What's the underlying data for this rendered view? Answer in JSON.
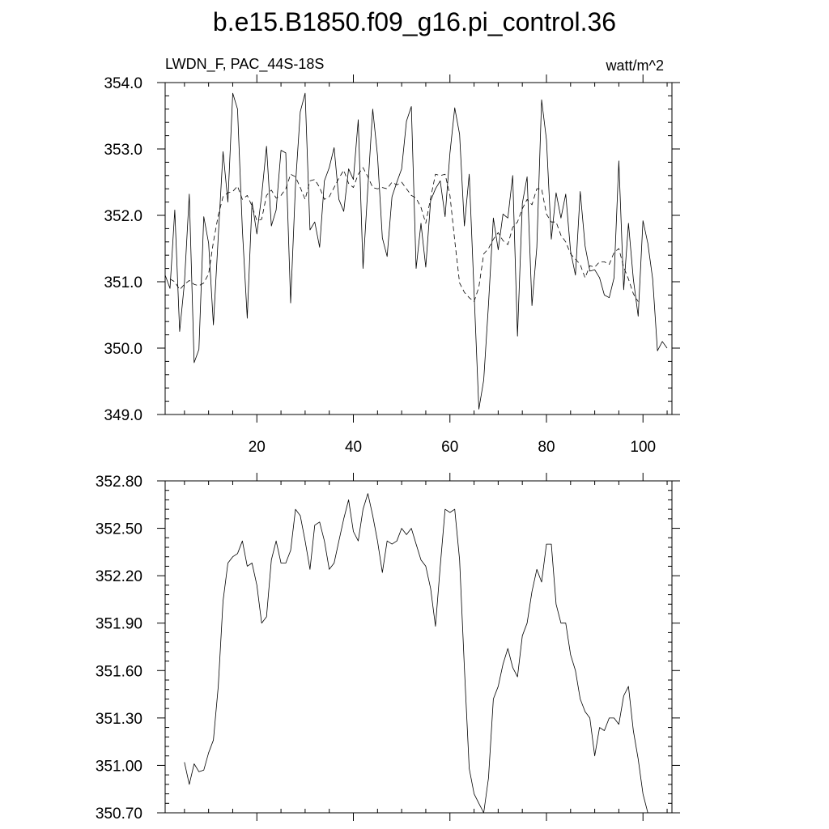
{
  "figure_title": "b.e15.B1850.f09_g16.pi_control.36",
  "chart_data": [
    {
      "type": "line",
      "title": "LWDN_F, PAC_44S-18S",
      "units_label": "watt/m^2",
      "xlim": [
        1,
        106
      ],
      "ylim": [
        349.0,
        354.0
      ],
      "x_ticks": [
        20,
        40,
        60,
        80,
        100
      ],
      "y_ticks": [
        349.0,
        350.0,
        351.0,
        352.0,
        353.0,
        354.0
      ],
      "y_tick_labels": [
        "349.0",
        "350.0",
        "351.0",
        "352.0",
        "353.0",
        "354.0"
      ],
      "grid": false,
      "series": [
        {
          "style": "solid",
          "x_start": 1,
          "values": [
            351.1,
            350.9,
            352.08,
            350.25,
            350.98,
            352.32,
            349.78,
            349.98,
            351.98,
            351.58,
            350.35,
            351.68,
            352.96,
            352.2,
            353.84,
            353.6,
            351.78,
            350.45,
            352.2,
            351.72,
            352.3,
            353.04,
            351.84,
            352.08,
            352.98,
            352.94,
            350.68,
            352.46,
            353.56,
            353.84,
            351.78,
            351.9,
            351.52,
            352.52,
            352.72,
            353.02,
            352.24,
            352.06,
            352.7,
            352.54,
            353.44,
            351.2,
            352.42,
            353.6,
            352.9,
            351.66,
            351.38,
            352.28,
            352.5,
            352.7,
            353.42,
            353.64,
            351.2,
            351.88,
            351.22,
            352.22,
            352.4,
            352.52,
            351.98,
            352.94,
            353.62,
            353.22,
            351.84,
            352.62,
            350.84,
            349.08,
            349.52,
            350.66,
            351.96,
            351.48,
            352.02,
            351.96,
            352.6,
            350.18,
            352.18,
            352.58,
            350.64,
            351.52,
            353.74,
            353.14,
            351.64,
            352.34,
            351.96,
            352.32,
            351.46,
            351.1,
            352.36,
            351.54,
            351.16,
            351.18,
            351.06,
            350.8,
            350.76,
            351.06,
            352.82,
            350.88,
            351.88,
            351.04,
            350.48,
            351.92,
            351.58,
            351.04,
            349.96,
            350.1,
            350.0
          ]
        },
        {
          "style": "dashed",
          "x_start": 2,
          "values": [
            351.04,
            351.0,
            350.88,
            350.96,
            351.02,
            350.96,
            350.94,
            350.98,
            351.12,
            351.6,
            352.0,
            352.28,
            352.34,
            352.36,
            352.44,
            352.24,
            352.3,
            352.14,
            351.92,
            351.94,
            352.3,
            352.38,
            352.26,
            352.3,
            352.4,
            352.62,
            352.58,
            352.42,
            352.24,
            352.52,
            352.54,
            352.42,
            352.24,
            352.28,
            352.42,
            352.56,
            352.68,
            352.48,
            352.42,
            352.62,
            352.72,
            352.58,
            352.42,
            352.4,
            352.42,
            352.4,
            352.5,
            352.46,
            352.5,
            352.4,
            352.3,
            352.26,
            352.12,
            351.88,
            352.26,
            352.62,
            352.6,
            352.62,
            352.3,
            351.62,
            350.98,
            350.84,
            350.76,
            350.7,
            350.92,
            351.42,
            351.5,
            351.64,
            351.74,
            351.62,
            351.56,
            351.82,
            351.9,
            352.1,
            352.24,
            352.16,
            352.4,
            352.4,
            352.02,
            351.9,
            351.9,
            351.7,
            351.6,
            351.42,
            351.34,
            351.26,
            351.06,
            351.24,
            351.22,
            351.3,
            351.3,
            351.26,
            351.44,
            351.5,
            351.22,
            351.04,
            350.82,
            350.7
          ]
        }
      ]
    },
    {
      "type": "line",
      "xlim": [
        1,
        106
      ],
      "ylim": [
        350.7,
        352.8
      ],
      "x_ticks": [
        20,
        40,
        60,
        80,
        100
      ],
      "y_ticks": [
        350.7,
        351.0,
        351.3,
        351.6,
        351.9,
        352.2,
        352.5,
        352.8
      ],
      "y_tick_labels": [
        "350.70",
        "351.00",
        "351.30",
        "351.60",
        "351.90",
        "352.20",
        "352.50",
        "352.80"
      ],
      "grid": false,
      "series": [
        {
          "style": "solid",
          "x_start": 5,
          "values": [
            351.02,
            350.88,
            351.01,
            350.96,
            350.97,
            351.08,
            351.16,
            351.5,
            352.04,
            352.28,
            352.32,
            352.34,
            352.42,
            352.26,
            352.28,
            352.14,
            351.9,
            351.94,
            352.3,
            352.42,
            352.28,
            352.28,
            352.36,
            352.62,
            352.58,
            352.42,
            352.24,
            352.52,
            352.54,
            352.42,
            352.24,
            352.28,
            352.42,
            352.56,
            352.68,
            352.48,
            352.42,
            352.62,
            352.72,
            352.58,
            352.42,
            352.22,
            352.42,
            352.4,
            352.42,
            352.5,
            352.46,
            352.5,
            352.4,
            352.3,
            352.26,
            352.12,
            351.88,
            352.26,
            352.62,
            352.6,
            352.62,
            352.3,
            351.62,
            350.98,
            350.82,
            350.76,
            350.7,
            350.92,
            351.42,
            351.5,
            351.64,
            351.74,
            351.62,
            351.56,
            351.82,
            351.9,
            352.1,
            352.24,
            352.16,
            352.4,
            352.4,
            352.02,
            351.9,
            351.9,
            351.7,
            351.6,
            351.42,
            351.34,
            351.3,
            351.06,
            351.24,
            351.22,
            351.3,
            351.3,
            351.26,
            351.44,
            351.5,
            351.22,
            351.04,
            350.82,
            350.7
          ]
        }
      ]
    }
  ]
}
